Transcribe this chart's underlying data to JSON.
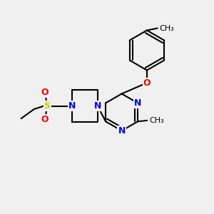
{
  "bg_color": "#f0f0f0",
  "bond_color": "#000000",
  "bond_width": 1.5,
  "atom_colors": {
    "N": "#0000ee",
    "O": "#ee0000",
    "S": "#cccc00",
    "C": "#000000"
  }
}
